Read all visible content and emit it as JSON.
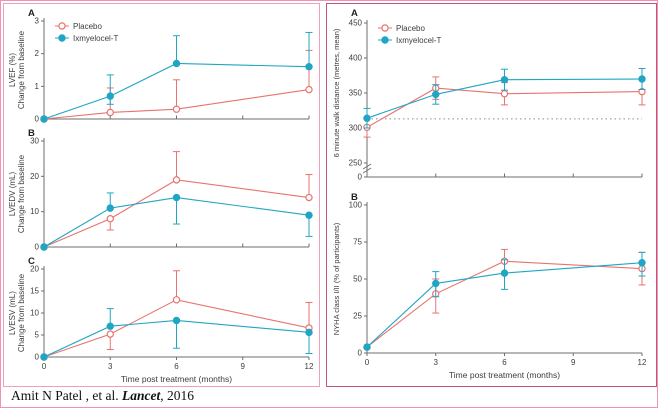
{
  "page": {
    "citation_prefix": "Amit N Patel , et al. ",
    "citation_journal": "Lancet",
    "citation_suffix": ", 2016"
  },
  "colors": {
    "placebo": "#e8736f",
    "treatment": "#21a5c4",
    "axis": "#6e6e6e",
    "text": "#3d3d3d",
    "ref_line": "#8a8a8a"
  },
  "legend_labels": {
    "placebo": "Placebo",
    "treatment": "Ixmyelocel-T"
  },
  "chart_data": [
    {
      "id": "lvef",
      "type": "line",
      "panel": "left",
      "panel_label": "A",
      "x": [
        0,
        3,
        6,
        12
      ],
      "x_range": [
        0,
        12
      ],
      "x_ticks": [
        0,
        3,
        6,
        9,
        12
      ],
      "show_x_tick_labels": false,
      "x_label": "",
      "y_label_lines": [
        "LVEF (%)",
        "Change from baseline"
      ],
      "y_range": [
        0,
        3
      ],
      "y_ticks": [
        0,
        1,
        2,
        3
      ],
      "axis_break": false,
      "ref_line": null,
      "show_legend": true,
      "series": [
        {
          "name": "Placebo",
          "color": "placebo",
          "marker": "open",
          "values": [
            0,
            0.2,
            0.3,
            0.9
          ],
          "err_hi": [
            0,
            0.95,
            1.2,
            2.1
          ],
          "err_lo": [
            0,
            0.2,
            0.3,
            0.9
          ]
        },
        {
          "name": "Ixmyelocel-T",
          "color": "treatment",
          "marker": "filled",
          "values": [
            0,
            0.7,
            1.7,
            1.6
          ],
          "err_hi": [
            0,
            1.35,
            2.55,
            2.65
          ],
          "err_lo": [
            0,
            0.45,
            1.7,
            1.6
          ]
        }
      ]
    },
    {
      "id": "lvedv",
      "type": "line",
      "panel": "left",
      "panel_label": "B",
      "x": [
        0,
        3,
        6,
        12
      ],
      "x_range": [
        0,
        12
      ],
      "x_ticks": [
        0,
        3,
        6,
        9,
        12
      ],
      "show_x_tick_labels": false,
      "x_label": "",
      "y_label_lines": [
        "LVEDV (mL)",
        "Change from baseline"
      ],
      "y_range": [
        0,
        30
      ],
      "y_ticks": [
        0,
        10,
        20,
        30
      ],
      "axis_break": false,
      "ref_line": null,
      "show_legend": false,
      "series": [
        {
          "name": "Placebo",
          "color": "placebo",
          "marker": "open",
          "values": [
            0,
            8,
            19,
            14
          ],
          "err_hi": [
            0,
            8,
            27,
            20.5
          ],
          "err_lo": [
            0,
            4.8,
            19,
            14
          ]
        },
        {
          "name": "Ixmyelocel-T",
          "color": "treatment",
          "marker": "filled",
          "values": [
            0,
            11,
            14,
            9
          ],
          "err_hi": [
            0,
            15.3,
            14,
            9
          ],
          "err_lo": [
            0,
            11,
            6.5,
            3
          ]
        }
      ]
    },
    {
      "id": "lvesv",
      "type": "line",
      "panel": "left",
      "panel_label": "C",
      "x": [
        0,
        3,
        6,
        12
      ],
      "x_range": [
        0,
        12
      ],
      "x_ticks": [
        0,
        3,
        6,
        9,
        12
      ],
      "show_x_tick_labels": true,
      "x_label": "Time post treatment (months)",
      "y_label_lines": [
        "LVESV (mL)",
        "Change from baseline"
      ],
      "y_range": [
        0,
        20
      ],
      "y_ticks": [
        0,
        5,
        10,
        15,
        20
      ],
      "axis_break": false,
      "ref_line": null,
      "show_legend": false,
      "series": [
        {
          "name": "Placebo",
          "color": "placebo",
          "marker": "open",
          "values": [
            0,
            5.2,
            13,
            6.6
          ],
          "err_hi": [
            0,
            5.2,
            19.6,
            12.4
          ],
          "err_lo": [
            0,
            1.7,
            13,
            6.6
          ]
        },
        {
          "name": "Ixmyelocel-T",
          "color": "treatment",
          "marker": "filled",
          "values": [
            0,
            7,
            8.3,
            5.6
          ],
          "err_hi": [
            0,
            11,
            8.3,
            5.6
          ],
          "err_lo": [
            0,
            7,
            2,
            0.8
          ]
        }
      ]
    },
    {
      "id": "six-minute-walk",
      "type": "line",
      "panel": "right",
      "panel_label": "A",
      "x": [
        0,
        3,
        6,
        12
      ],
      "x_range": [
        0,
        12
      ],
      "x_ticks": [
        0,
        3,
        6,
        9,
        12
      ],
      "show_x_tick_labels": false,
      "x_label": "",
      "y_label_lines": [
        "6 minute walk distance (metres, mean)"
      ],
      "y_range": [
        250,
        450
      ],
      "y_ticks": [
        250,
        300,
        350,
        400,
        450
      ],
      "axis_break": true,
      "break_zero_label": "0",
      "ref_line": 313,
      "show_legend": true,
      "series": [
        {
          "name": "Placebo",
          "color": "placebo",
          "marker": "open",
          "values": [
            301,
            357,
            349,
            352
          ],
          "err_hi": [
            315,
            373,
            365,
            371
          ],
          "err_lo": [
            287,
            341,
            333,
            333
          ]
        },
        {
          "name": "Ixmyelocel-T",
          "color": "treatment",
          "marker": "filled",
          "values": [
            314,
            348,
            369,
            370
          ],
          "err_hi": [
            328,
            362,
            384,
            385
          ],
          "err_lo": [
            300,
            334,
            354,
            355
          ]
        }
      ]
    },
    {
      "id": "nyha-class",
      "type": "line",
      "panel": "right",
      "panel_label": "B",
      "x": [
        0,
        3,
        6,
        12
      ],
      "x_range": [
        0,
        12
      ],
      "x_ticks": [
        0,
        3,
        6,
        9,
        12
      ],
      "show_x_tick_labels": true,
      "x_label": "Time post treatment (months)",
      "y_label_lines": [
        "NYHA class I/II (% of participants)"
      ],
      "y_range": [
        0,
        100
      ],
      "y_ticks": [
        0,
        25,
        50,
        75,
        100
      ],
      "axis_break": false,
      "ref_line": null,
      "show_legend": false,
      "series": [
        {
          "name": "Placebo",
          "color": "placebo",
          "marker": "open",
          "values": [
            4,
            40,
            62,
            57
          ],
          "err_hi": [
            4,
            50,
            70,
            68
          ],
          "err_lo": [
            4,
            27,
            53,
            46
          ]
        },
        {
          "name": "Ixmyelocel-T",
          "color": "treatment",
          "marker": "filled",
          "values": [
            4,
            47,
            54,
            61
          ],
          "err_hi": [
            4,
            55,
            63,
            68
          ],
          "err_lo": [
            4,
            38,
            43,
            52
          ]
        }
      ]
    }
  ]
}
